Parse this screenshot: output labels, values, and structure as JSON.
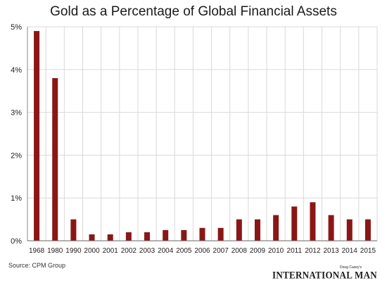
{
  "chart_data": {
    "type": "bar",
    "title": "Gold as a Percentage of Global Financial Assets",
    "xlabel": "",
    "ylabel": "",
    "categories": [
      "1968",
      "1980",
      "1990",
      "2000",
      "2001",
      "2002",
      "2003",
      "2004",
      "2005",
      "2006",
      "2007",
      "2008",
      "2009",
      "2010",
      "2011",
      "2012",
      "2013",
      "2014",
      "2015"
    ],
    "values": [
      4.9,
      3.8,
      0.5,
      0.15,
      0.15,
      0.2,
      0.2,
      0.25,
      0.25,
      0.3,
      0.3,
      0.5,
      0.5,
      0.6,
      0.8,
      0.9,
      0.6,
      0.5,
      0.5
    ],
    "ylim": [
      0,
      5
    ],
    "yticks": [
      0,
      1,
      2,
      3,
      4,
      5
    ],
    "ytick_labels": [
      "0%",
      "1%",
      "2%",
      "3%",
      "4%",
      "5%"
    ],
    "grid": true,
    "bar_color": "#8b1616"
  },
  "source": "Source: CPM Group",
  "brand": {
    "small": "Doug Casey's",
    "main": "INTERNATIONAL MAN"
  }
}
